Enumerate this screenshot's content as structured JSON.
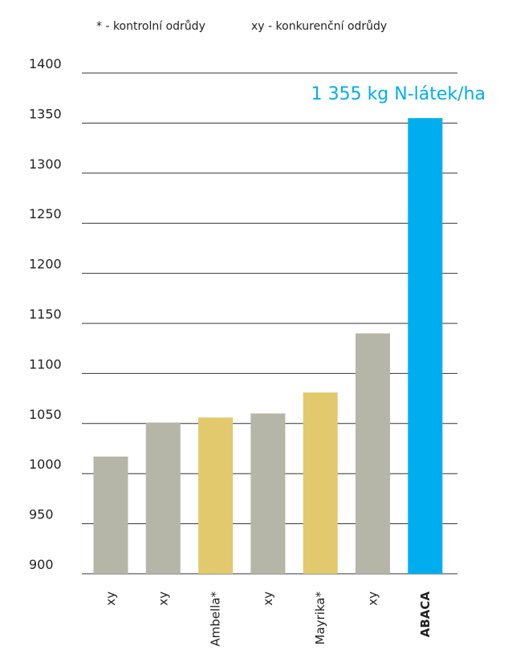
{
  "legend": {
    "control": "* -  kontrolní odrůdy",
    "competitor": "xy - konkurenční odrůdy"
  },
  "chart_data": {
    "type": "bar",
    "categories": [
      "xy",
      "xy",
      "Ambella*",
      "xy",
      "Mayrika*",
      "xy",
      "ABACA"
    ],
    "values": [
      1017,
      1051,
      1056,
      1060,
      1081,
      1140,
      1355
    ],
    "bar_colors": [
      "#b5b5a8",
      "#b5b5a8",
      "#e2c96e",
      "#b5b5a8",
      "#e2c96e",
      "#b5b5a8",
      "#00aeef"
    ],
    "highlight_index": 6,
    "ylim": [
      900,
      1400
    ],
    "y_ticks": [
      900,
      950,
      1000,
      1050,
      1100,
      1150,
      1200,
      1250,
      1300,
      1350,
      1400
    ],
    "grid": true,
    "annotation": "1 355 kg N-látek/ha",
    "annotation_color": "#00aeef",
    "title": "",
    "xlabel": "",
    "ylabel": ""
  }
}
